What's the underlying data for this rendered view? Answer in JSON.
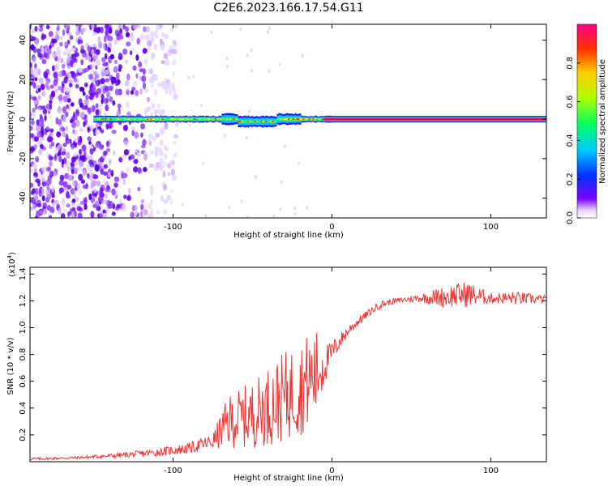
{
  "figure": {
    "title": "C2E6.2023.166.17.54.G11"
  },
  "chart_data": [
    {
      "type": "heatmap",
      "name": "spectrogram",
      "xlabel": "Height of straight line (km)",
      "ylabel": "Frequency (Hz)",
      "xlim": [
        -190,
        135
      ],
      "ylim": [
        -50,
        48
      ],
      "xticks": [
        -100,
        0,
        100
      ],
      "xtick_labels": [
        "-100",
        "0",
        "100"
      ],
      "yticks": [
        -40,
        -20,
        0,
        20,
        40
      ],
      "ytick_labels": [
        "-40",
        "-20",
        "0",
        "20",
        "40"
      ],
      "colorbar": {
        "label": "Normalized spectral amplitude",
        "range": [
          0,
          1
        ],
        "ticks": [
          0.0,
          0.2,
          0.4,
          0.6,
          0.8
        ],
        "tick_labels": [
          "0.0",
          "0.2",
          "0.4",
          "0.6",
          "0.8"
        ]
      },
      "features": {
        "noise_region_km": [
          -190,
          -120
        ],
        "signal_band_hz": 0,
        "signal_start_km": -150,
        "saturated_line_start_km": 5
      }
    },
    {
      "type": "line",
      "name": "snr",
      "xlabel": "Height of straight line (km)",
      "ylabel": "SNR (10 * v/v)",
      "multiplier_label": "(x10",
      "multiplier_exp": "4",
      "multiplier_close": ")",
      "color": "#ee3333",
      "xlim": [
        -190,
        135
      ],
      "ylim": [
        0.0,
        1.45
      ],
      "xticks": [
        -100,
        0,
        100
      ],
      "xtick_labels": [
        "-100",
        "0",
        "100"
      ],
      "yticks": [
        0.2,
        0.4,
        0.6,
        0.8,
        1.0,
        1.2,
        1.4
      ],
      "ytick_labels": [
        "0.2",
        "0.4",
        "0.6",
        "0.8",
        "1.0",
        "1.2",
        "1.4"
      ],
      "x": [
        -190,
        -160,
        -130,
        -110,
        -90,
        -75,
        -65,
        -50,
        -35,
        -20,
        -10,
        -2,
        5,
        12,
        20,
        30,
        40,
        55,
        70,
        85,
        100,
        115,
        135
      ],
      "y": [
        0.02,
        0.03,
        0.05,
        0.07,
        0.1,
        0.15,
        0.3,
        0.35,
        0.45,
        0.55,
        0.65,
        0.78,
        0.9,
        1.0,
        1.08,
        1.17,
        1.2,
        1.22,
        1.23,
        1.25,
        1.22,
        1.22,
        1.21
      ],
      "noise": [
        0.01,
        0.01,
        0.02,
        0.03,
        0.04,
        0.06,
        0.2,
        0.25,
        0.32,
        0.36,
        0.35,
        0.1,
        0.06,
        0.04,
        0.03,
        0.03,
        0.02,
        0.03,
        0.08,
        0.1,
        0.04,
        0.05,
        0.03
      ]
    }
  ]
}
